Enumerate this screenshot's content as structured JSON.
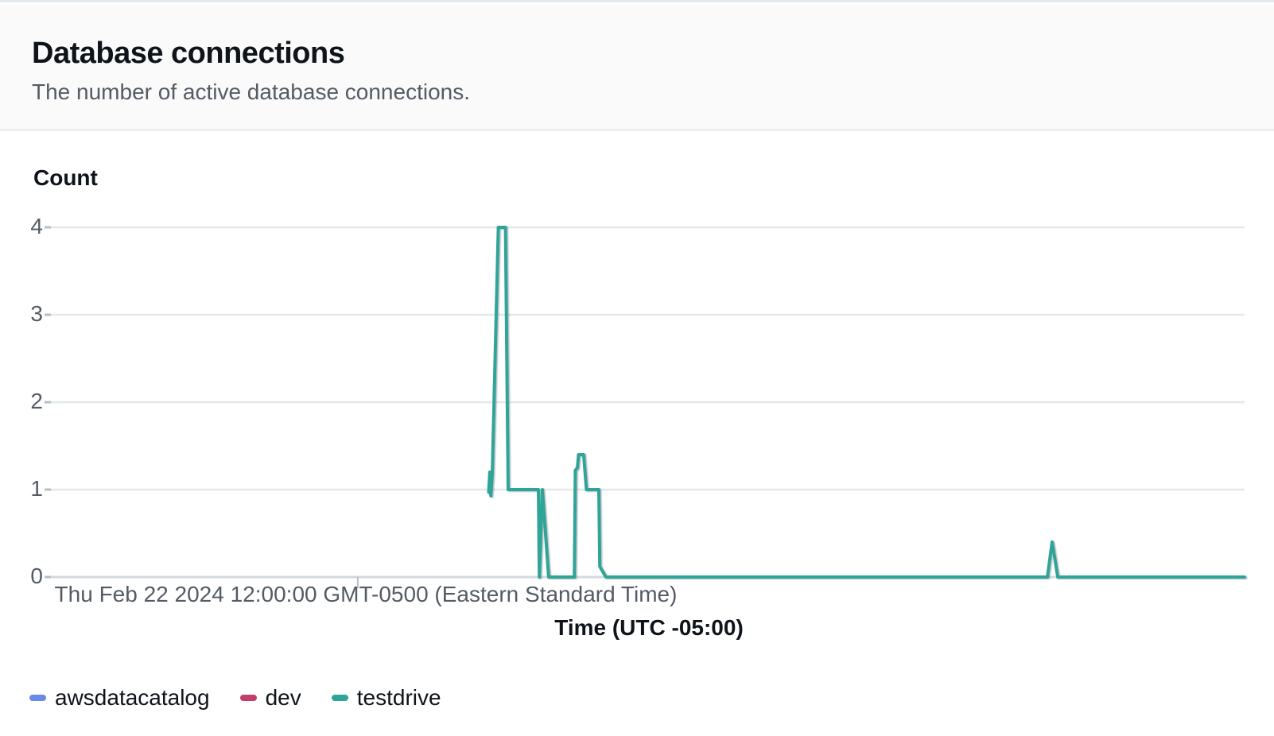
{
  "header": {
    "title": "Database connections",
    "subtitle": "The number of active database connections."
  },
  "chart_data": {
    "type": "line",
    "title": "Database connections",
    "ylabel": "Count",
    "xlabel": "Time (UTC -05:00)",
    "ylim": [
      0,
      4
    ],
    "yticks": [
      4,
      3,
      2,
      1,
      0
    ],
    "grid": true,
    "legend_position": "bottom",
    "x_axis": {
      "tick_fraction": 0.2576,
      "tick_label": "Thu Feb 22 2024 12:00:00 GMT-0500 (Eastern Standard Time)"
    },
    "series": [
      {
        "name": "awsdatacatalog",
        "color": "#688ae8",
        "points": []
      },
      {
        "name": "dev",
        "color": "#c33d69",
        "points": []
      },
      {
        "name": "testdrive",
        "color": "#2ea597",
        "points": [
          [
            0.3672,
            0.97
          ],
          [
            0.3681,
            1.2
          ],
          [
            0.369,
            0.93
          ],
          [
            0.3702,
            1.18
          ],
          [
            0.3752,
            4.0
          ],
          [
            0.3812,
            4.0
          ],
          [
            0.3835,
            1.0
          ],
          [
            0.4088,
            1.0
          ],
          [
            0.4096,
            0.0
          ],
          [
            0.4121,
            1.0
          ],
          [
            0.4174,
            0.0
          ],
          [
            0.4389,
            0.0
          ],
          [
            0.4397,
            1.22
          ],
          [
            0.4414,
            1.25
          ],
          [
            0.4424,
            1.4
          ],
          [
            0.4467,
            1.4
          ],
          [
            0.449,
            1.0
          ],
          [
            0.4594,
            1.0
          ],
          [
            0.4602,
            0.12
          ],
          [
            0.4653,
            0.0
          ],
          [
            0.8349,
            0.0
          ],
          [
            0.8389,
            0.4
          ],
          [
            0.8436,
            0.0
          ],
          [
            1.0,
            0.0
          ]
        ]
      }
    ]
  }
}
